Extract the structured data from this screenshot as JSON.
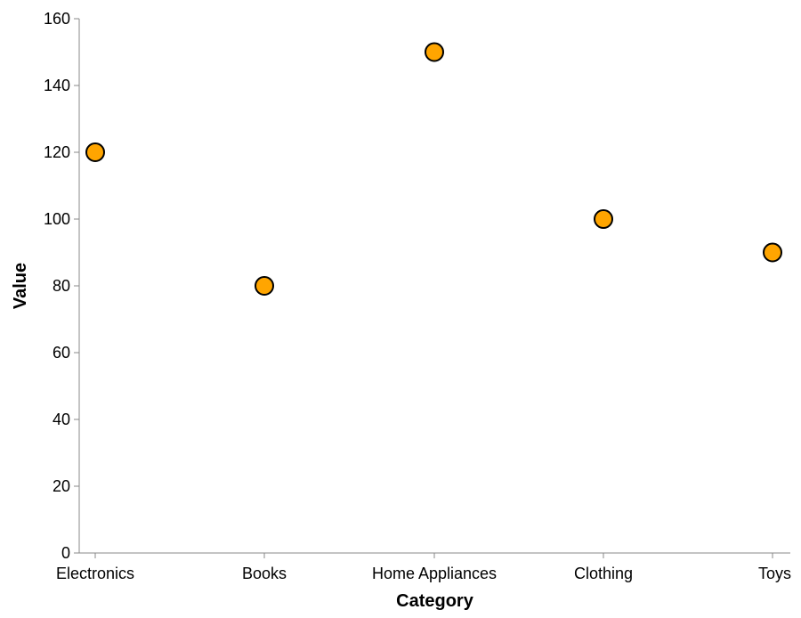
{
  "chart_data": {
    "type": "scatter",
    "categories": [
      "Electronics",
      "Books",
      "Home Appliances",
      "Clothing",
      "Toys"
    ],
    "values": [
      120,
      80,
      150,
      100,
      90
    ],
    "xlabel": "Category",
    "ylabel": "Value",
    "ylim": [
      0,
      160
    ],
    "yticks": [
      0,
      20,
      40,
      60,
      80,
      100,
      120,
      140,
      160
    ],
    "grid": false,
    "colors": {
      "point_fill": "#FFA500",
      "point_stroke": "#000000",
      "axis": "#888888"
    }
  }
}
